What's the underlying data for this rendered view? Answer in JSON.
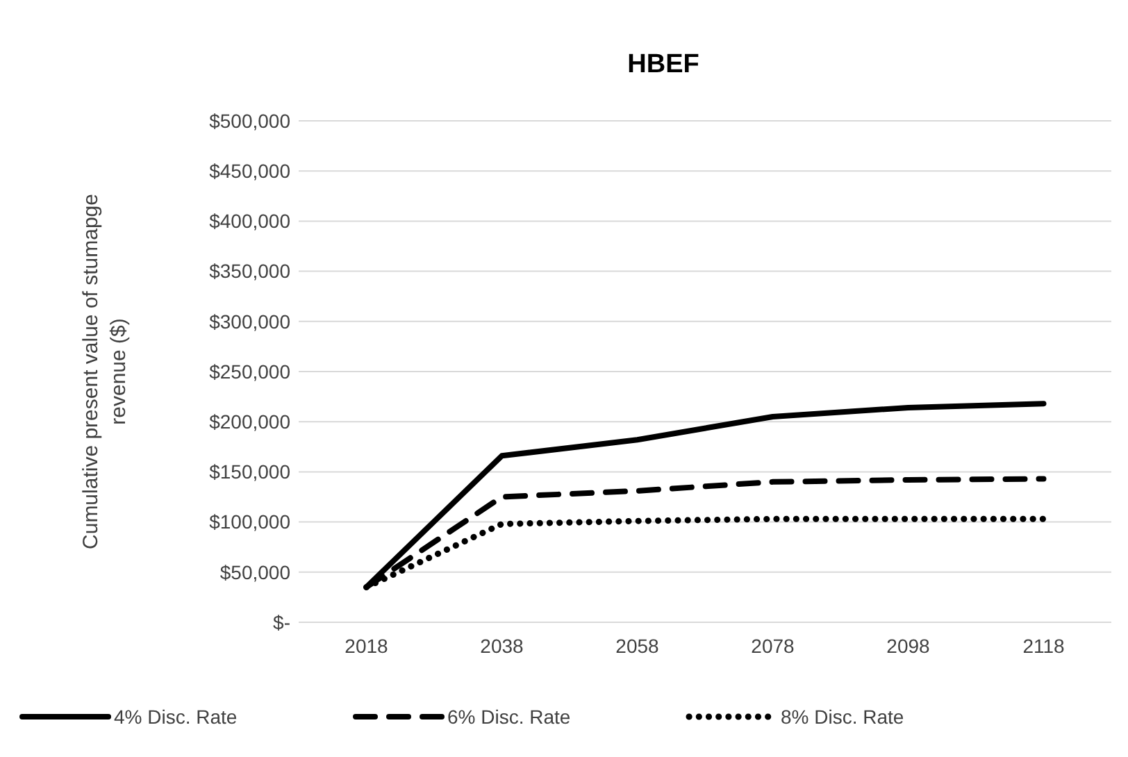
{
  "chart_data": {
    "type": "line",
    "title": "HBEF",
    "ylabel": "Cumulative present value of stumapge revenue ($)",
    "categories": [
      "2018",
      "2038",
      "2058",
      "2078",
      "2098",
      "2118"
    ],
    "series": [
      {
        "name": "4% Disc. Rate",
        "color": "#000000",
        "line_style": "solid",
        "values": [
          35000,
          166000,
          182000,
          205000,
          214000,
          218000
        ]
      },
      {
        "name": "6% Disc. Rate",
        "color": "#000000",
        "line_style": "dashed",
        "values": [
          35000,
          125000,
          131000,
          140000,
          142000,
          143000
        ]
      },
      {
        "name": "8% Disc. Rate",
        "color": "#000000",
        "line_style": "dotted",
        "values": [
          35000,
          98000,
          101000,
          103000,
          103000,
          103000
        ]
      }
    ],
    "ylim": [
      0,
      500000
    ],
    "yticks": [
      {
        "value": 0,
        "label": "$-"
      },
      {
        "value": 50000,
        "label": "$50,000"
      },
      {
        "value": 100000,
        "label": "$100,000"
      },
      {
        "value": 150000,
        "label": "$150,000"
      },
      {
        "value": 200000,
        "label": "$200,000"
      },
      {
        "value": 250000,
        "label": "$250,000"
      },
      {
        "value": 300000,
        "label": "$300,000"
      },
      {
        "value": 350000,
        "label": "$350,000"
      },
      {
        "value": 400000,
        "label": "$400,000"
      },
      {
        "value": 450000,
        "label": "$450,000"
      },
      {
        "value": 500000,
        "label": "$500,000"
      }
    ],
    "grid": "y",
    "legend": "bottom",
    "marker": "none"
  }
}
